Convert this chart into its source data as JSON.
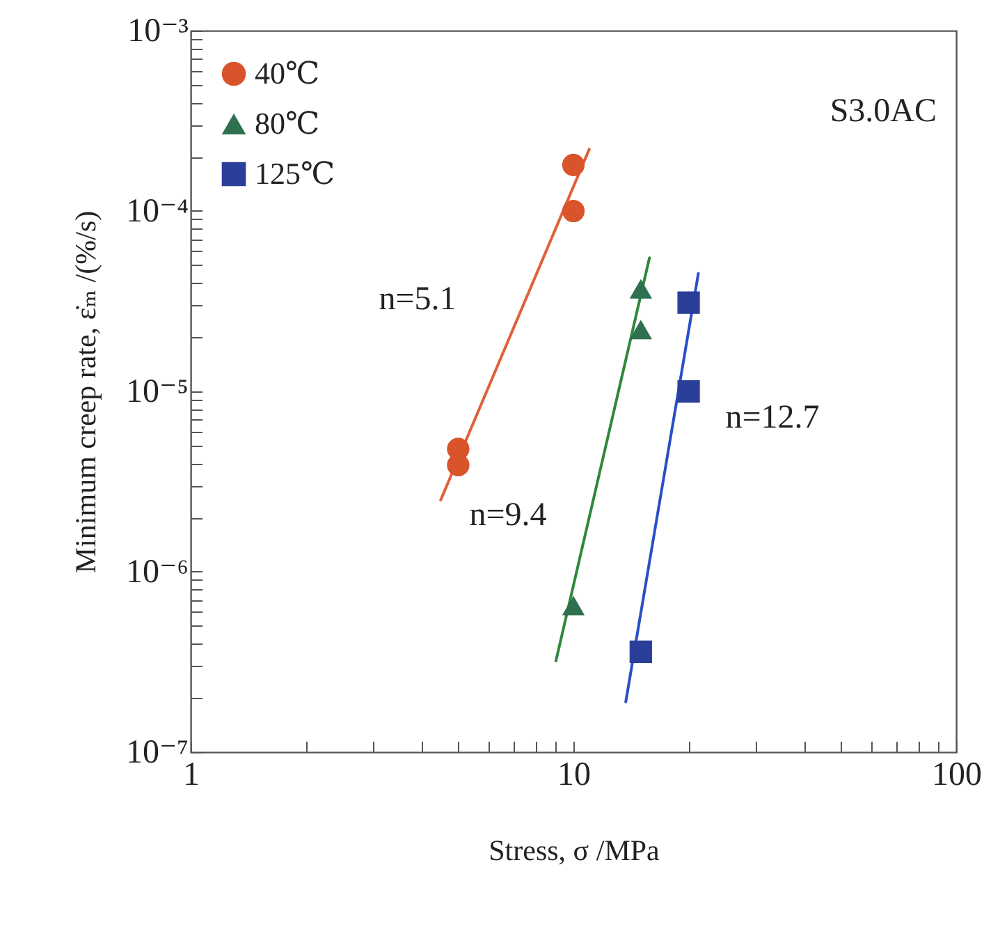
{
  "chart_data": {
    "type": "scatter",
    "xlabel": "Stress,  σ /MPa",
    "ylabel": "Minimum creep rate,  ε̇ₘ /(%/s)",
    "log": "xy",
    "legend": "top left",
    "xlim": [
      1,
      100
    ],
    "ylim": [
      1e-07,
      0.001
    ],
    "xticks": [
      1,
      {
        "value": 2,
        "label": null
      },
      {
        "value": 3,
        "label": null
      },
      {
        "value": 4,
        "label": null
      },
      {
        "value": 5,
        "label": null
      },
      {
        "value": 6,
        "label": null
      },
      {
        "value": 7,
        "label": null
      },
      {
        "value": 8,
        "label": null
      },
      {
        "value": 9,
        "label": null
      },
      10,
      {
        "value": 20,
        "label": null
      },
      {
        "value": 30,
        "label": null
      },
      {
        "value": 40,
        "label": null
      },
      {
        "value": 50,
        "label": null
      },
      {
        "value": 60,
        "label": null
      },
      {
        "value": 70,
        "label": null
      },
      {
        "value": 80,
        "label": null
      },
      {
        "value": 90,
        "label": null
      },
      100
    ],
    "yticks": [
      {
        "value": 1e-07,
        "label": "10⁻⁷"
      },
      {
        "value": 2e-07,
        "label": null
      },
      {
        "value": 3e-07,
        "label": null
      },
      {
        "value": 4e-07,
        "label": null
      },
      {
        "value": 5e-07,
        "label": null
      },
      {
        "value": 6e-07,
        "label": null
      },
      {
        "value": 7e-07,
        "label": null
      },
      {
        "value": 8e-07,
        "label": null
      },
      {
        "value": 9e-07,
        "label": null
      },
      {
        "value": 1e-06,
        "label": "10⁻⁶"
      },
      {
        "value": 2e-06,
        "label": null
      },
      {
        "value": 3e-06,
        "label": null
      },
      {
        "value": 4e-06,
        "label": null
      },
      {
        "value": 5e-06,
        "label": null
      },
      {
        "value": 6e-06,
        "label": null
      },
      {
        "value": 7e-06,
        "label": null
      },
      {
        "value": 8e-06,
        "label": null
      },
      {
        "value": 9e-06,
        "label": null
      },
      {
        "value": 1e-05,
        "label": "10⁻⁵"
      },
      {
        "value": 2e-05,
        "label": null
      },
      {
        "value": 3e-05,
        "label": null
      },
      {
        "value": 4e-05,
        "label": null
      },
      {
        "value": 5e-05,
        "label": null
      },
      {
        "value": 6e-05,
        "label": null
      },
      {
        "value": 7e-05,
        "label": null
      },
      {
        "value": 8e-05,
        "label": null
      },
      {
        "value": 9e-05,
        "label": null
      },
      {
        "value": 0.0001,
        "label": "10⁻⁴"
      },
      {
        "value": 0.0002,
        "label": null
      },
      {
        "value": 0.0003,
        "label": null
      },
      {
        "value": 0.0004,
        "label": null
      },
      {
        "value": 0.0005,
        "label": null
      },
      {
        "value": 0.0006,
        "label": null
      },
      {
        "value": 0.0007,
        "label": null
      },
      {
        "value": 0.0008,
        "label": null
      },
      {
        "value": 0.0009,
        "label": null
      },
      {
        "value": 0.001,
        "label": "10⁻³"
      }
    ],
    "series": [
      {
        "name": "40℃",
        "type": "scatter",
        "marker": "circle",
        "color": "#d9542b",
        "x": [
          10,
          10,
          5,
          5
        ],
        "values": [
          0.00018,
          0.0001,
          4.8e-06,
          3.9e-06
        ]
      },
      {
        "name": "80℃",
        "type": "scatter",
        "marker": "triangle",
        "color": "#2e7050",
        "x": [
          15,
          15,
          10
        ],
        "values": [
          3.7e-05,
          2.2e-05,
          6.5e-07
        ]
      },
      {
        "name": "125℃",
        "type": "scatter",
        "marker": "square",
        "color": "#2a3f9a",
        "x": [
          20,
          20,
          15
        ],
        "values": [
          3.1e-05,
          1e-05,
          3.6e-07
        ]
      },
      {
        "type": "line",
        "marker": "none",
        "color": "#e0603a",
        "x": [
          4.5,
          11.0
        ],
        "values": [
          2.5e-06,
          0.00022
        ]
      },
      {
        "type": "line",
        "marker": "none",
        "color": "#2e8a3a",
        "x": [
          9.0,
          15.8
        ],
        "values": [
          3.2e-07,
          5.5e-05
        ]
      },
      {
        "type": "line",
        "marker": "none",
        "color": "#2a4fc8",
        "x": [
          13.7,
          21.2
        ],
        "values": [
          1.9e-07,
          4.5e-05
        ]
      }
    ],
    "annotations": [
      "n=5.1",
      "n=9.4",
      "n=12.7",
      "S3.0AC"
    ]
  }
}
